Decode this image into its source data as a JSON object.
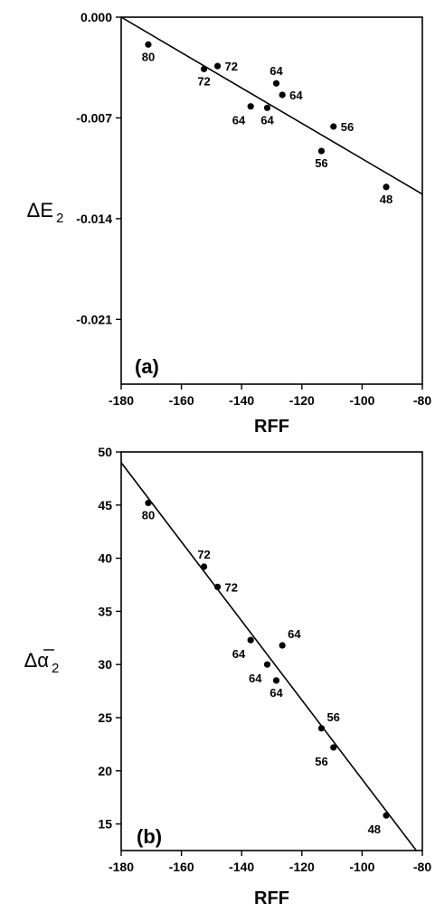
{
  "chart_data": [
    {
      "type": "scatter",
      "panel_label": "(a)",
      "xlabel": "RFF",
      "ylabel_main": "ΔE",
      "ylabel_sub": "2",
      "xlim": [
        -180,
        -80
      ],
      "ylim": [
        -0.0255,
        0.0
      ],
      "x_ticks": [
        -180,
        -160,
        -140,
        -120,
        -100,
        -80
      ],
      "x_tick_labels": [
        "-180",
        "-160",
        "-140",
        "-120",
        "-100",
        "-80"
      ],
      "y_ticks": [
        0.0,
        -0.007,
        -0.014,
        -0.021
      ],
      "y_tick_labels": [
        "0.000",
        "-0.007",
        "-0.014",
        "-0.021"
      ],
      "points": [
        {
          "x": -171,
          "y": -0.0019,
          "label": "80",
          "label_pos": "below"
        },
        {
          "x": -148,
          "y": -0.0034,
          "label": "72",
          "label_pos": "right"
        },
        {
          "x": -152.5,
          "y": -0.0036,
          "label": "72",
          "label_pos": "below"
        },
        {
          "x": -128.5,
          "y": -0.0046,
          "label": "64",
          "label_pos": "above"
        },
        {
          "x": -126.5,
          "y": -0.0054,
          "label": "64",
          "label_pos": "right"
        },
        {
          "x": -137,
          "y": -0.0062,
          "label": "64",
          "label_pos": "below-left"
        },
        {
          "x": -131.5,
          "y": -0.0063,
          "label": "64",
          "label_pos": "below"
        },
        {
          "x": -109.5,
          "y": -0.0076,
          "label": "56",
          "label_pos": "right"
        },
        {
          "x": -113.5,
          "y": -0.0093,
          "label": "56",
          "label_pos": "below"
        },
        {
          "x": -92,
          "y": -0.0118,
          "label": "48",
          "label_pos": "below"
        }
      ],
      "fit_line": {
        "x": [
          -180,
          -80
        ],
        "y": [
          0.0,
          -0.0123
        ]
      }
    },
    {
      "type": "scatter",
      "panel_label": "(b)",
      "xlabel": "RFF",
      "ylabel_main": "Δα",
      "ylabel_sub": "2",
      "xlim": [
        -180,
        -80
      ],
      "ylim": [
        12.5,
        50
      ],
      "x_ticks": [
        -180,
        -160,
        -140,
        -120,
        -100,
        -80
      ],
      "x_tick_labels": [
        "-180",
        "-160",
        "-140",
        "-120",
        "-100",
        "-80"
      ],
      "y_ticks": [
        15,
        20,
        25,
        30,
        35,
        40,
        45,
        50
      ],
      "y_tick_labels": [
        "15",
        "20",
        "25",
        "30",
        "35",
        "40",
        "45",
        "50"
      ],
      "points": [
        {
          "x": -171,
          "y": 45.2,
          "label": "80",
          "label_pos": "below"
        },
        {
          "x": -152.5,
          "y": 39.2,
          "label": "72",
          "label_pos": "above"
        },
        {
          "x": -148,
          "y": 37.3,
          "label": "72",
          "label_pos": "right"
        },
        {
          "x": -137,
          "y": 32.3,
          "label": "64",
          "label_pos": "below-left"
        },
        {
          "x": -126.5,
          "y": 31.8,
          "label": "64",
          "label_pos": "above-right"
        },
        {
          "x": -131.5,
          "y": 30.0,
          "label": "64",
          "label_pos": "below-left"
        },
        {
          "x": -128.5,
          "y": 28.5,
          "label": "64",
          "label_pos": "below"
        },
        {
          "x": -113.5,
          "y": 24.0,
          "label": "56",
          "label_pos": "above-right"
        },
        {
          "x": -109.5,
          "y": 22.2,
          "label": "56",
          "label_pos": "below-left"
        },
        {
          "x": -92,
          "y": 15.8,
          "label": "48",
          "label_pos": "below-left"
        }
      ],
      "fit_line": {
        "x": [
          -180,
          -82
        ],
        "y": [
          49.0,
          12.5
        ]
      }
    }
  ]
}
